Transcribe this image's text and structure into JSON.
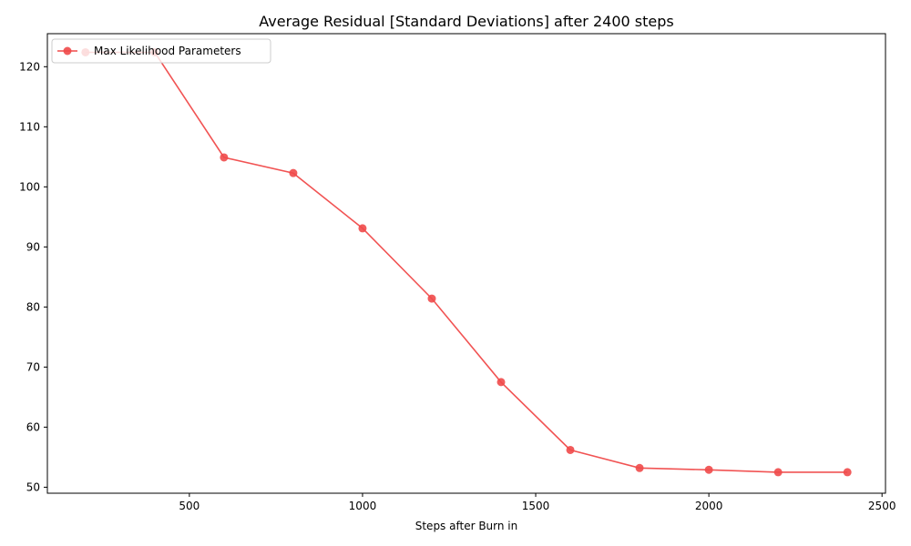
{
  "chart_data": {
    "type": "line",
    "title": "Average Residual [Standard Deviations] after 2400 steps",
    "xlabel": "Steps after Burn in",
    "ylabel": "",
    "xlim": [
      90,
      2510
    ],
    "ylim": [
      49,
      125.5
    ],
    "xticks": [
      500,
      1000,
      1500,
      2000,
      2500
    ],
    "yticks": [
      50,
      60,
      70,
      80,
      90,
      100,
      110,
      120
    ],
    "grid": false,
    "legend_position": "top-left",
    "series": [
      {
        "name": "Max Likelihood Parameters",
        "color": "#f04a4a",
        "marker": "circle",
        "x": [
          200,
          400,
          600,
          800,
          1000,
          1200,
          1400,
          1600,
          1800,
          2000,
          2200,
          2400
        ],
        "y": [
          122.4,
          122.4,
          104.9,
          102.3,
          93.1,
          81.4,
          67.5,
          56.2,
          53.2,
          52.9,
          52.5,
          52.5
        ]
      }
    ]
  }
}
